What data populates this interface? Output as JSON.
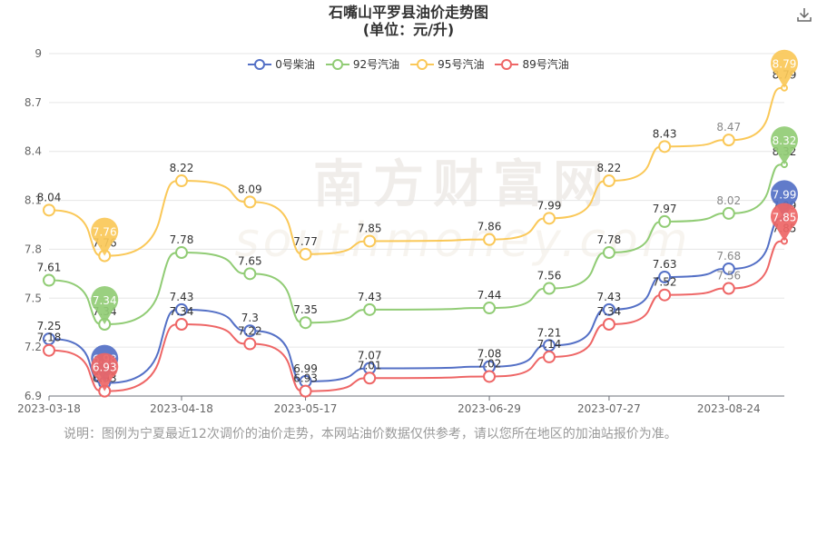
{
  "title_line1": "石嘴山平罗县油价走势图",
  "title_line2": "(单位：元/升)",
  "note": "说明：图例为宁夏最近12次调价的油价走势，本网站油价数据仅供参考，请以您所在地区的加油站报价为准。",
  "watermark": {
    "cn": "南方财富网",
    "en": "southmoney.com"
  },
  "download_icon": "download-icon",
  "chart_data": {
    "type": "line",
    "x": [
      "2023-03-18",
      "2023-03-31",
      "2023-04-18",
      "2023-05-04",
      "2023-05-17",
      "2023-06-01",
      "2023-06-29",
      "2023-07-13",
      "2023-07-27",
      "2023-08-09",
      "2023-08-24",
      "2023-09-06"
    ],
    "xticks": [
      "2023-03-18",
      "2023-04-18",
      "2023-05-17",
      "2023-06-29",
      "2023-07-27",
      "2023-08-24"
    ],
    "ylim": [
      6.9,
      9
    ],
    "yticks": [
      6.9,
      7.2,
      7.5,
      7.8,
      8.1,
      8.4,
      8.7,
      9
    ],
    "legend_position": "top-center",
    "grid": true,
    "series": [
      {
        "name": "0号柴油",
        "color": "#5470c6",
        "values": [
          7.25,
          6.98,
          7.43,
          7.3,
          6.99,
          7.07,
          7.08,
          7.21,
          7.43,
          7.63,
          7.68,
          7.99
        ],
        "pins": [
          1,
          11
        ]
      },
      {
        "name": "92号汽油",
        "color": "#91cc75",
        "values": [
          7.61,
          7.34,
          7.78,
          7.65,
          7.35,
          7.43,
          7.44,
          7.56,
          7.78,
          7.97,
          8.02,
          8.32
        ],
        "pins": [
          1,
          11
        ]
      },
      {
        "name": "95号汽油",
        "color": "#fac858",
        "values": [
          8.04,
          7.76,
          8.22,
          8.09,
          7.77,
          7.85,
          7.86,
          7.99,
          8.22,
          8.43,
          8.47,
          8.79
        ],
        "pins": [
          1,
          11
        ]
      },
      {
        "name": "89号汽油",
        "color": "#ee6666",
        "values": [
          7.18,
          6.93,
          7.34,
          7.22,
          6.93,
          7.01,
          7.02,
          7.14,
          7.34,
          7.52,
          7.56,
          7.85
        ],
        "pins": [
          1,
          11
        ]
      }
    ]
  }
}
